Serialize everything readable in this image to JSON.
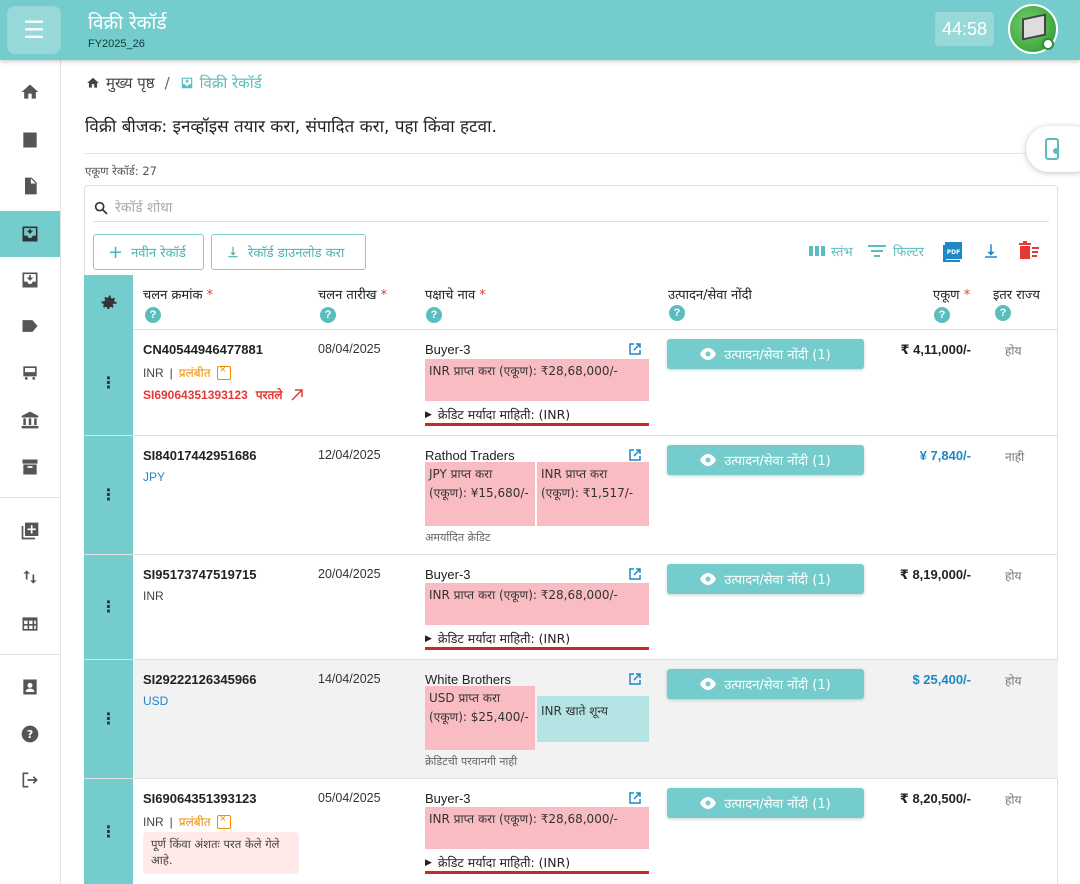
{
  "header": {
    "title": "विक्री रेकॉर्ड",
    "subtitle": "FY2025_26",
    "timer": "44:58"
  },
  "breadcrumb": {
    "home": "मुख्य पृष्ठ",
    "separator": "/",
    "current": "विक्री रेकॉर्ड"
  },
  "page": {
    "description": "विक्री बीजक: इनव्हॉइस तयार करा, संपादित करा, पहा किंवा हटवा.",
    "record_count": "एकूण रेकॉर्ड: 27"
  },
  "search": {
    "placeholder": "रेकॉर्ड शोधा"
  },
  "toolbar": {
    "new_record": "नवीन रेकॉर्ड",
    "download_records": "रेकॉर्ड डाउनलोड करा",
    "columns": "स्तंभ",
    "filter": "फिल्टर",
    "pdf": "PDF"
  },
  "table": {
    "headers": {
      "invoice_no": "चलन क्रमांक",
      "invoice_date": "चलन तारीख",
      "party_name": "पक्षाचे नाव",
      "products": "उत्पादन/सेवा नोंदी",
      "total": "एकूण",
      "other_state": "इतर राज्य",
      "required_mark": "*",
      "help": "?"
    },
    "product_button_label": "उत्पादन/सेवा नोंदी (1)",
    "rows": [
      {
        "invoice": "CN40544946477881",
        "currency": "INR",
        "currency_sep": "|",
        "status": "प्रलंबीत",
        "return_ref": "SI69064351393123",
        "return_label": "परतले",
        "date": "08/04/2025",
        "party": "Buyer-3",
        "box1": "INR प्राप्त करा (एकूण): ₹28,68,000/-",
        "credit": "क्रेडिट मर्यादा माहिती: (INR)",
        "total": "₹ 4,11,000/-",
        "other_state": "होय"
      },
      {
        "invoice": "SI84017442951686",
        "currency": "JPY",
        "date": "12/04/2025",
        "party": "Rathod Traders",
        "box1": "JPY प्राप्त करा (एकूण): ¥15,680/-",
        "box2": "INR प्राप्त करा (एकूण): ₹1,517/-",
        "note": "अमर्यादित क्रेडिट",
        "total": "¥ 7,840/-",
        "other_state": "नाही"
      },
      {
        "invoice": "SI95173747519715",
        "currency": "INR",
        "date": "20/04/2025",
        "party": "Buyer-3",
        "box1": "INR प्राप्त करा (एकूण): ₹28,68,000/-",
        "credit": "क्रेडिट मर्यादा माहिती: (INR)",
        "total": "₹ 8,19,000/-",
        "other_state": "होय"
      },
      {
        "invoice": "SI29222126345966",
        "currency": "USD",
        "date": "14/04/2025",
        "party": "White Brothers",
        "box1": "USD प्राप्त करा (एकूण): $25,400/-",
        "box2": "INR खाते शून्य",
        "note": "क्रेडिटची परवानगी नाही",
        "total": "$ 25,400/-",
        "other_state": "होय"
      },
      {
        "invoice": "SI69064351393123",
        "currency": "INR",
        "currency_sep": "|",
        "status": "प्रलंबीत",
        "partial_note": "पूर्ण किंवा अंशतः परत केले गेले आहे.",
        "date": "05/04/2025",
        "party": "Buyer-3",
        "box1": "INR प्राप्त करा (एकूण): ₹28,68,000/-",
        "credit": "क्रेडिट मर्यादा माहिती: (INR)",
        "total": "₹ 8,20,500/-",
        "other_state": "होय"
      }
    ]
  },
  "colors": {
    "primary": "#74cdcc",
    "accent_text": "#4bb3b3",
    "danger": "#e53935",
    "pending": "#f08c00",
    "link_blue": "#1e88c7",
    "pink_box": "#f9bcc2",
    "teal_box": "#b4e4e4"
  }
}
